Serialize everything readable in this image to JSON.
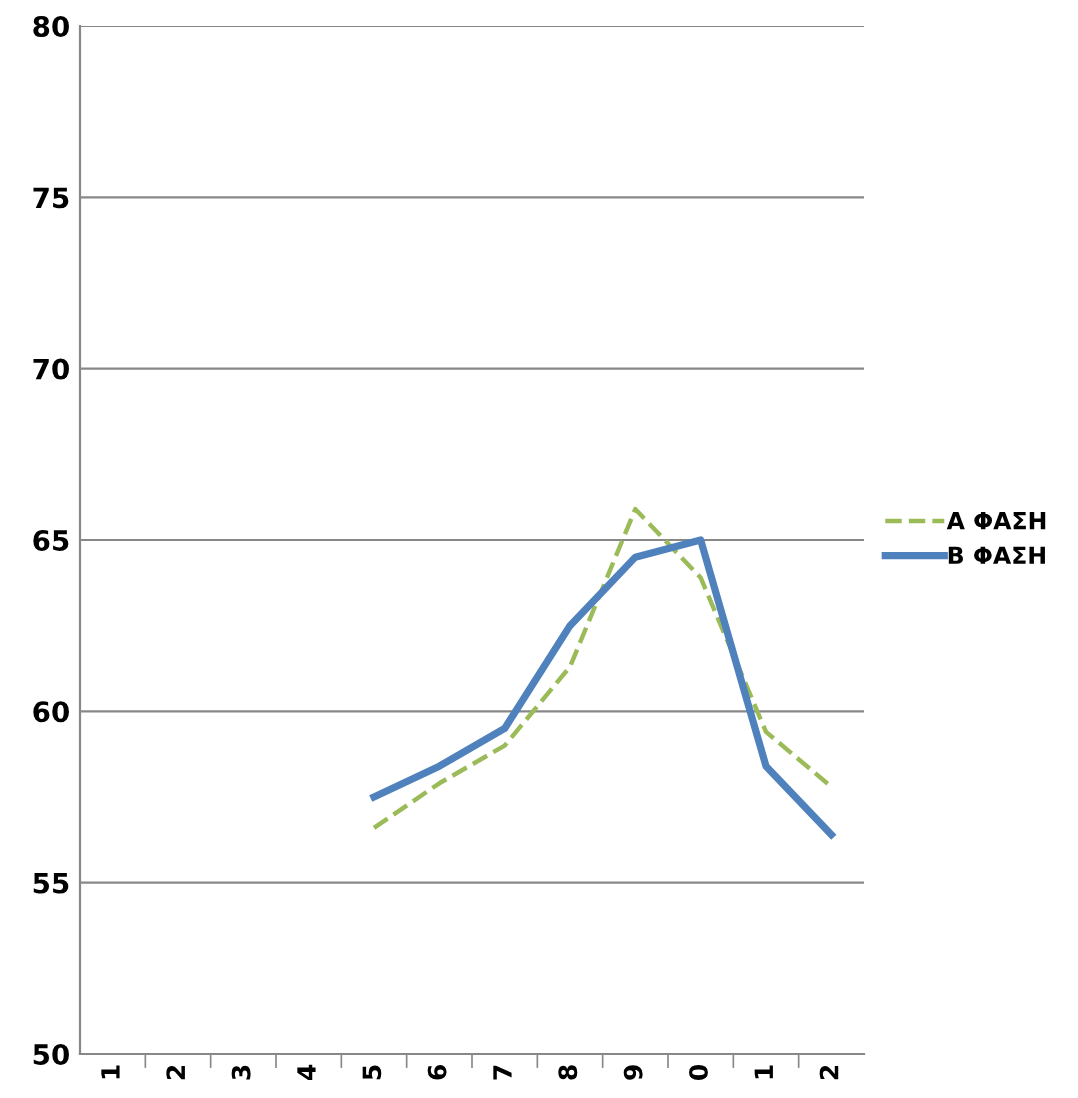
{
  "chart_data": {
    "type": "line",
    "categories": [
      "1",
      "2",
      "3",
      "4",
      "5",
      "6",
      "7",
      "8",
      "9",
      "0",
      "1",
      "2"
    ],
    "series": [
      {
        "name": "Α ΦΑΣΗ",
        "color": "#9bbb59",
        "line_style": "dashed",
        "values": [
          null,
          null,
          null,
          null,
          56.6,
          57.9,
          59.0,
          61.3,
          65.9,
          63.9,
          59.4,
          57.8
        ]
      },
      {
        "name": "Β ΦΑΣΗ",
        "color": "#4f81bd",
        "line_style": "solid",
        "values": [
          null,
          null,
          null,
          null,
          57.5,
          58.4,
          59.5,
          62.5,
          64.5,
          65.0,
          58.4,
          56.4
        ]
      }
    ],
    "ylim": [
      50,
      80
    ],
    "yticks": [
      50,
      55,
      60,
      65,
      70,
      75,
      80
    ],
    "grid": "y",
    "legend": "right",
    "marker": "none"
  }
}
